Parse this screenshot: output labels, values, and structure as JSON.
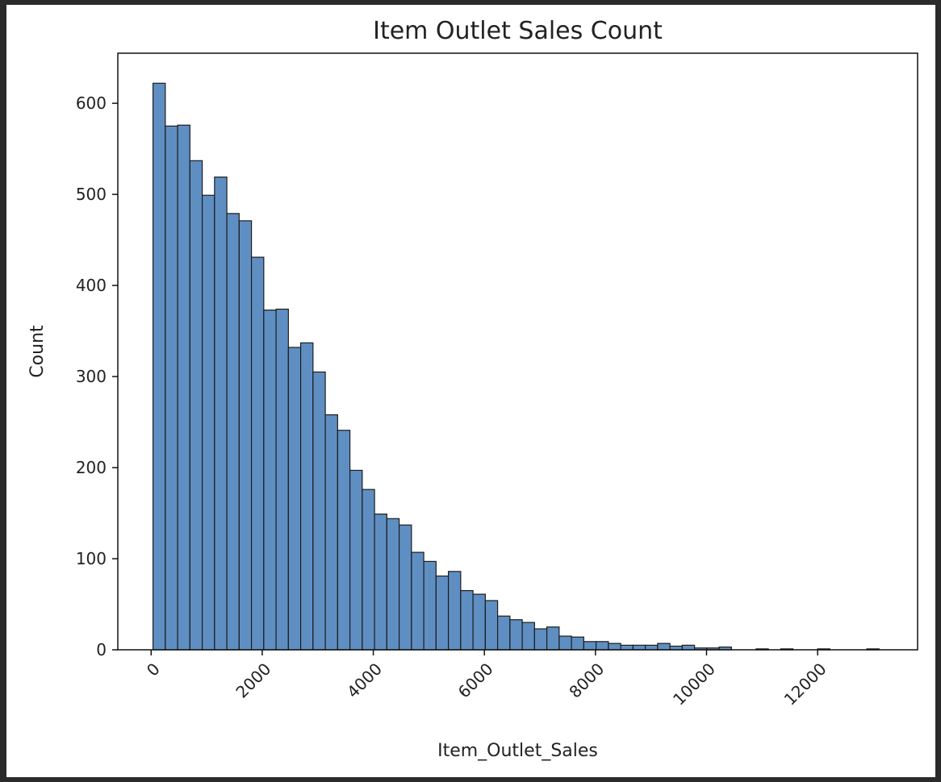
{
  "chart_data": {
    "type": "bar",
    "title": "Item Outlet Sales Count",
    "xlabel": "Item_Outlet_Sales",
    "ylabel": "Count",
    "xlim": [
      -600,
      13800
    ],
    "ylim": [
      0,
      655
    ],
    "bin_width": 221.6,
    "bin_start": 33.3,
    "counts": [
      622,
      575,
      576,
      537,
      499,
      519,
      479,
      471,
      431,
      373,
      374,
      332,
      337,
      305,
      258,
      241,
      197,
      176,
      149,
      144,
      137,
      107,
      97,
      81,
      86,
      65,
      61,
      54,
      37,
      33,
      30,
      23,
      25,
      15,
      14,
      9,
      9,
      7,
      5,
      5,
      5,
      7,
      4,
      5,
      2,
      2,
      3,
      0,
      0,
      1,
      0,
      1,
      0,
      0,
      1,
      0,
      0,
      0,
      1
    ],
    "xticks": [
      0,
      2000,
      4000,
      6000,
      8000,
      10000,
      12000
    ],
    "xtick_labels": [
      "0",
      "2000",
      "4000",
      "6000",
      "8000",
      "10000",
      "12000"
    ],
    "yticks": [
      0,
      100,
      200,
      300,
      400,
      500,
      600
    ],
    "ytick_labels": [
      "0",
      "100",
      "200",
      "300",
      "400",
      "500",
      "600"
    ],
    "grid": false,
    "bar_color": "#5f8fc2",
    "edge_color": "#1c1c1c"
  }
}
